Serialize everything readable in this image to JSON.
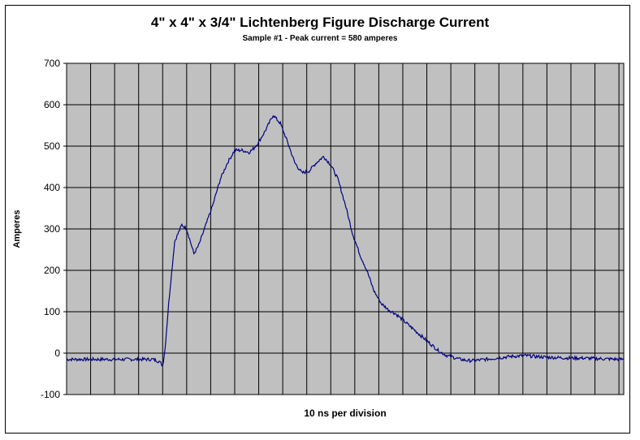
{
  "chart_data": {
    "type": "line",
    "title": "4\" x 4\" x 3/4\" Lichtenberg Figure Discharge Current",
    "subtitle": "Sample #1 - Peak current = 580 amperes",
    "xlabel": "10 ns per division",
    "ylabel": "Amperes",
    "ylim": [
      -100,
      700
    ],
    "yticks": [
      700,
      600,
      500,
      400,
      300,
      200,
      100,
      0,
      -100
    ],
    "xlim": [
      0,
      23.2
    ],
    "x_divisions": 23,
    "grid": true,
    "plot_background": "#c0c0c0",
    "grid_color": "#000000",
    "line_color": "#000080",
    "series": [
      {
        "x": [
          0,
          1,
          2,
          3,
          3.6,
          3.85,
          4.0,
          4.1,
          4.25,
          4.5,
          4.8,
          5.0,
          5.15,
          5.3,
          5.5,
          5.8,
          6.1,
          6.4,
          6.7,
          7.0,
          7.3,
          7.6,
          7.8,
          8.0,
          8.3,
          8.6,
          8.9,
          9.2,
          9.5,
          9.8,
          10.1,
          10.4,
          10.7,
          11.0,
          11.3,
          11.6,
          11.9,
          12.2,
          12.5,
          12.8,
          13.1,
          13.4,
          13.7,
          14.0,
          14.3,
          14.6,
          14.9,
          15.2,
          15.5,
          15.8,
          16.1,
          16.4,
          16.7,
          17.0,
          17.3,
          17.6,
          17.9,
          18.2,
          18.5,
          18.8,
          19.1,
          19.5,
          20,
          20.5,
          21,
          21.5,
          22,
          22.5,
          23.2
        ],
        "y": [
          -15,
          -15,
          -15,
          -15,
          -15,
          -20,
          -30,
          10,
          120,
          270,
          310,
          300,
          270,
          240,
          260,
          310,
          360,
          420,
          460,
          490,
          490,
          485,
          495,
          510,
          540,
          575,
          555,
          510,
          460,
          435,
          440,
          460,
          475,
          455,
          420,
          360,
          290,
          240,
          200,
          150,
          120,
          105,
          95,
          80,
          65,
          50,
          35,
          20,
          5,
          -5,
          -10,
          -15,
          -18,
          -18,
          -16,
          -14,
          -12,
          -10,
          -8,
          -7,
          -6,
          -8,
          -10,
          -11,
          -12,
          -12,
          -13,
          -14,
          -15
        ]
      }
    ]
  }
}
